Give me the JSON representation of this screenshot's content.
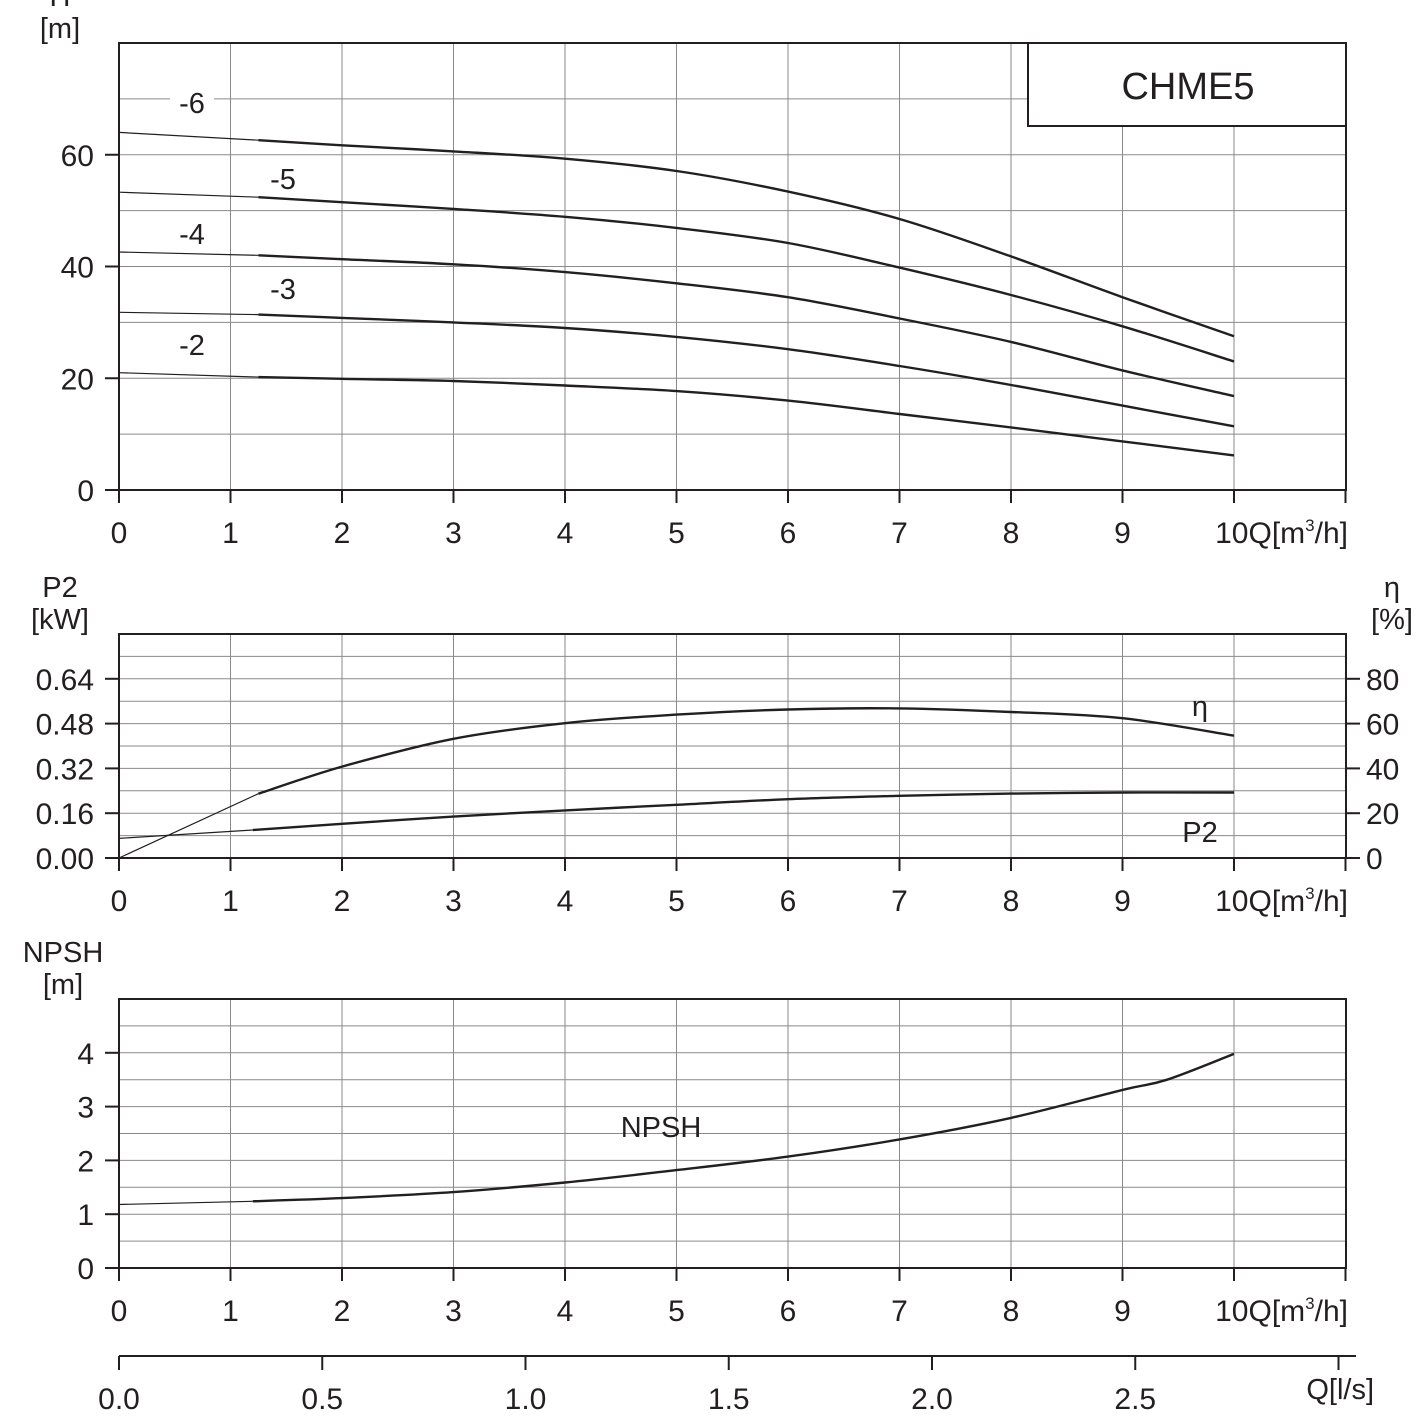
{
  "model": "CHME5",
  "colors": {
    "line": "#231f20",
    "grid": "#8a8a8a",
    "background": "#ffffff"
  },
  "x_axis": {
    "ticks": [
      "0",
      "1",
      "2",
      "3",
      "4",
      "5",
      "6",
      "7",
      "8",
      "9",
      "10"
    ],
    "unit_label": "Q[m³/h]"
  },
  "ls_axis": {
    "ticks": [
      "0.0",
      "0.5",
      "1.0",
      "1.5",
      "2.0",
      "2.5"
    ],
    "unit_label": "Q[l/s]"
  },
  "chart_data": [
    {
      "type": "line",
      "title": "CHME5",
      "ylabel": "H [m]",
      "y_label_lines": [
        "H",
        "[m]"
      ],
      "xlabel": "Q[m³/h]",
      "xlim": [
        0,
        11
      ],
      "ylim": [
        0,
        80
      ],
      "grid": true,
      "x_ticks": [
        0,
        1,
        2,
        3,
        4,
        5,
        6,
        7,
        8,
        9,
        10
      ],
      "y_ticks": [
        0,
        20,
        40,
        60
      ],
      "y_tick_labels": [
        "0",
        "20",
        "40",
        "60"
      ],
      "series": [
        {
          "name": "-2",
          "extrapolation": [
            [
              0,
              21.0
            ],
            [
              1.25,
              20.2
            ]
          ],
          "points": [
            [
              1.25,
              20.2
            ],
            [
              2,
              19.9
            ],
            [
              3,
              19.5
            ],
            [
              4,
              18.7
            ],
            [
              5,
              17.7
            ],
            [
              6,
              16.0
            ],
            [
              7,
              13.6
            ],
            [
              8,
              11.2
            ],
            [
              9,
              8.7
            ],
            [
              10,
              6.2
            ]
          ]
        },
        {
          "name": "-3",
          "extrapolation": [
            [
              0,
              31.8
            ],
            [
              1.25,
              31.4
            ]
          ],
          "points": [
            [
              1.25,
              31.4
            ],
            [
              2,
              30.8
            ],
            [
              3,
              30.0
            ],
            [
              4,
              29.0
            ],
            [
              5,
              27.4
            ],
            [
              6,
              25.2
            ],
            [
              7,
              22.2
            ],
            [
              8,
              18.8
            ],
            [
              9,
              15.1
            ],
            [
              10,
              11.4
            ]
          ]
        },
        {
          "name": "-4",
          "extrapolation": [
            [
              0,
              42.6
            ],
            [
              1.25,
              42.0
            ]
          ],
          "points": [
            [
              1.25,
              42.0
            ],
            [
              2,
              41.3
            ],
            [
              3,
              40.4
            ],
            [
              4,
              39.0
            ],
            [
              5,
              37.0
            ],
            [
              6,
              34.5
            ],
            [
              7,
              30.7
            ],
            [
              8,
              26.5
            ],
            [
              9,
              21.4
            ],
            [
              10,
              16.8
            ]
          ]
        },
        {
          "name": "-5",
          "extrapolation": [
            [
              0,
              53.3
            ],
            [
              1.25,
              52.4
            ]
          ],
          "points": [
            [
              1.25,
              52.4
            ],
            [
              2,
              51.5
            ],
            [
              3,
              50.3
            ],
            [
              4,
              48.9
            ],
            [
              5,
              46.9
            ],
            [
              6,
              44.2
            ],
            [
              7,
              39.8
            ],
            [
              8,
              34.9
            ],
            [
              9,
              29.3
            ],
            [
              10,
              23.0
            ]
          ]
        },
        {
          "name": "-6",
          "extrapolation": [
            [
              0,
              64.0
            ],
            [
              1.25,
              62.6
            ]
          ],
          "points": [
            [
              1.25,
              62.6
            ],
            [
              2,
              61.7
            ],
            [
              3,
              60.6
            ],
            [
              4,
              59.3
            ],
            [
              5,
              57.1
            ],
            [
              6,
              53.4
            ],
            [
              7,
              48.5
            ],
            [
              8,
              41.8
            ],
            [
              9,
              34.5
            ],
            [
              10,
              27.5
            ]
          ]
        }
      ]
    },
    {
      "type": "line",
      "ylabel": "P2 [kW]",
      "y_label_lines": [
        "P2",
        "[kW]"
      ],
      "y2label": "η [%]",
      "y2_label_lines": [
        "η",
        "[%]"
      ],
      "xlabel": "Q[m³/h]",
      "xlim": [
        0,
        11
      ],
      "ylim": [
        0,
        0.8
      ],
      "y2lim": [
        0,
        100
      ],
      "grid": true,
      "x_ticks": [
        0,
        1,
        2,
        3,
        4,
        5,
        6,
        7,
        8,
        9,
        10
      ],
      "y_ticks": [
        0,
        0.16,
        0.32,
        0.48,
        0.64
      ],
      "y_tick_labels": [
        "0.00",
        "0.16",
        "0.32",
        "0.48",
        "0.64"
      ],
      "y2_ticks": [
        0,
        20,
        40,
        60,
        80
      ],
      "y2_tick_labels": [
        "0",
        "20",
        "40",
        "60",
        "80"
      ],
      "series": [
        {
          "name": "η",
          "axis": "right",
          "extrapolation": [
            [
              0,
              0
            ],
            [
              1.25,
              28.7
            ]
          ],
          "points": [
            [
              1.25,
              28.7
            ],
            [
              2,
              40.8
            ],
            [
              3,
              53.2
            ],
            [
              4,
              60.2
            ],
            [
              5,
              64.0
            ],
            [
              6,
              66.3
            ],
            [
              7,
              66.8
            ],
            [
              8,
              65.2
            ],
            [
              9,
              62.4
            ],
            [
              10,
              54.6
            ]
          ]
        },
        {
          "name": "P2",
          "axis": "left",
          "extrapolation": [
            [
              0,
              0.07
            ],
            [
              1.2,
              0.1
            ]
          ],
          "points": [
            [
              1.2,
              0.1
            ],
            [
              2,
              0.122
            ],
            [
              3,
              0.148
            ],
            [
              4,
              0.17
            ],
            [
              5,
              0.19
            ],
            [
              6,
              0.21
            ],
            [
              7,
              0.222
            ],
            [
              8,
              0.23
            ],
            [
              9,
              0.234
            ],
            [
              10,
              0.234
            ]
          ]
        }
      ]
    },
    {
      "type": "line",
      "ylabel": "NPSH [m]",
      "y_label_lines": [
        "NPSH",
        "[m]"
      ],
      "xlabel": "Q[m³/h]",
      "xlim": [
        0,
        11
      ],
      "ylim": [
        0,
        5
      ],
      "grid": true,
      "x_ticks": [
        0,
        1,
        2,
        3,
        4,
        5,
        6,
        7,
        8,
        9,
        10
      ],
      "y_ticks": [
        0,
        1,
        2,
        3,
        4
      ],
      "y_tick_labels": [
        "0",
        "1",
        "2",
        "3",
        "4"
      ],
      "series": [
        {
          "name": "NPSH",
          "extrapolation": [
            [
              0,
              1.18
            ],
            [
              1.2,
              1.24
            ]
          ],
          "points": [
            [
              1.2,
              1.24
            ],
            [
              2,
              1.3
            ],
            [
              3,
              1.41
            ],
            [
              4,
              1.59
            ],
            [
              5,
              1.82
            ],
            [
              6,
              2.07
            ],
            [
              7,
              2.39
            ],
            [
              8,
              2.79
            ],
            [
              9,
              3.31
            ],
            [
              9.4,
              3.5
            ],
            [
              10,
              3.98
            ]
          ]
        }
      ]
    }
  ]
}
